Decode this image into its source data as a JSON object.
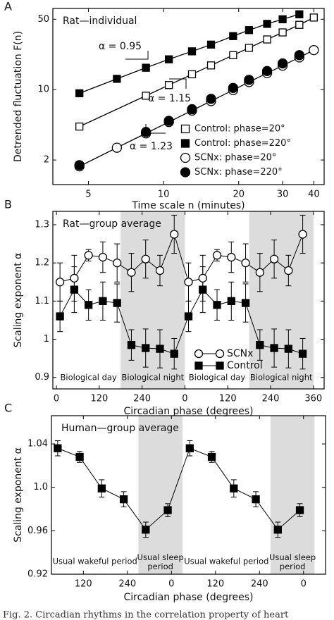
{
  "chart_data": [
    {
      "type": "scatter",
      "panel": "A",
      "annotation": "Rat—individual",
      "xlabel": "Time scale n (minutes)",
      "ylabel": "Detrended fluctuation F(n)",
      "xscale": "log",
      "yscale": "log",
      "xlim": [
        3.6,
        44
      ],
      "ylim": [
        1.14,
        64
      ],
      "xticks": [
        5,
        10,
        20,
        30,
        40
      ],
      "yticks": [
        2,
        10,
        50
      ],
      "alpha_labels": [
        "α = 0.95",
        "α = 1.15",
        "α = 1.23"
      ],
      "legend": "lower right",
      "series": [
        {
          "name": "Control: phase=20°",
          "marker": "square",
          "filled": false,
          "fit": true,
          "color": "#000000",
          "x": [
            4.6,
            8.5,
            10.5,
            13,
            15.5,
            19,
            22,
            26,
            30,
            35,
            40
          ],
          "values": [
            4.3,
            8.7,
            11.1,
            14.2,
            17.4,
            22,
            26,
            31.5,
            37,
            44,
            52
          ]
        },
        {
          "name": "Control: phase=220°",
          "marker": "square",
          "filled": true,
          "fit": true,
          "color": "#000000",
          "x": [
            4.6,
            6.5,
            8.5,
            10.5,
            13,
            15.5,
            19,
            22,
            26,
            30,
            35
          ],
          "values": [
            9.2,
            12.8,
            16.5,
            20,
            24,
            28,
            34,
            39,
            45,
            50,
            56
          ]
        },
        {
          "name": "SCNx:   phase=20°",
          "marker": "circle",
          "filled": false,
          "fit": true,
          "color": "#000000",
          "x": [
            4.6,
            6.5,
            8.5,
            10.5,
            13,
            15.5,
            19,
            22,
            26,
            30,
            35,
            40
          ],
          "values": [
            1.73,
            2.65,
            3.68,
            4.77,
            6.2,
            7.7,
            9.9,
            11.9,
            14.6,
            17.3,
            20.9,
            24.7
          ]
        },
        {
          "name": "SCNx:   phase=220°",
          "marker": "circle",
          "filled": true,
          "fit": false,
          "color": "#000000",
          "x": [
            4.6,
            8.5,
            10.5,
            13,
            15.5,
            19,
            22,
            26,
            30,
            35
          ],
          "values": [
            1.78,
            3.8,
            4.9,
            6.4,
            8.1,
            10.4,
            12.5,
            15.3,
            18.2,
            22
          ]
        }
      ]
    },
    {
      "type": "line",
      "panel": "B",
      "annotation": "Rat—group average",
      "xlabel": "Circadian phase (degrees)",
      "ylabel": "Scaling exponent α",
      "xlim": [
        -10,
        750
      ],
      "ylim": [
        0.87,
        1.335
      ],
      "xticks": [
        0,
        120,
        240,
        {
          "value": 360,
          "label": "0"
        },
        {
          "value": 480,
          "label": "120"
        },
        {
          "value": 600,
          "label": "240"
        },
        {
          "value": 720,
          "label": "360"
        }
      ],
      "yticks": [
        0.9,
        1,
        1.1,
        1.2,
        1.3
      ],
      "regions": [
        {
          "start": 0,
          "end": 180,
          "label": "Biological day",
          "shaded": false
        },
        {
          "start": 180,
          "end": 360,
          "label": "Biological night",
          "shaded": true
        },
        {
          "start": 360,
          "end": 540,
          "label": "Biological day",
          "shaded": false
        },
        {
          "start": 540,
          "end": 720,
          "label": "Biological night",
          "shaded": true
        }
      ],
      "shade_color": "#dcdcdc",
      "legend": "lower right",
      "x": [
        10,
        50,
        90,
        130,
        170,
        210,
        250,
        290,
        330,
        370,
        410,
        450,
        490,
        530,
        570,
        610,
        650,
        690
      ],
      "series": [
        {
          "name": "SCNx",
          "marker": "circle",
          "filled": false,
          "color": "#000000",
          "values": [
            1.15,
            1.16,
            1.22,
            1.215,
            1.2,
            1.175,
            1.21,
            1.18,
            1.275,
            1.15,
            1.16,
            1.22,
            1.215,
            1.2,
            1.175,
            1.21,
            1.18,
            1.275
          ],
          "errors": [
            0.05,
            0.06,
            0.015,
            0.04,
            0.05,
            0.05,
            0.05,
            0.04,
            0.05,
            0.05,
            0.06,
            0.015,
            0.04,
            0.05,
            0.05,
            0.05,
            0.04,
            0.05
          ]
        },
        {
          "name": "Control",
          "marker": "square",
          "filled": true,
          "color": "#000000",
          "values": [
            1.06,
            1.13,
            1.09,
            1.1,
            1.095,
            0.985,
            0.977,
            0.975,
            0.962,
            1.06,
            1.13,
            1.09,
            1.1,
            1.095,
            0.985,
            0.977,
            0.975,
            0.962
          ],
          "errors": [
            0.04,
            0.06,
            0.04,
            0.05,
            0.05,
            0.04,
            0.05,
            0.05,
            0.04,
            0.04,
            0.06,
            0.04,
            0.05,
            0.05,
            0.04,
            0.05,
            0.05,
            0.04
          ]
        }
      ]
    },
    {
      "type": "line",
      "panel": "C",
      "annotation": "Human—group average",
      "xlabel": "Circadian phase (degrees)",
      "ylabel": "Scaling exponent α",
      "xlim": [
        33,
        780
      ],
      "ylim": [
        0.92,
        1.066
      ],
      "xticks": [
        120,
        240,
        {
          "value": 360,
          "label": "0"
        },
        {
          "value": 480,
          "label": "120"
        },
        {
          "value": 600,
          "label": "240"
        },
        {
          "value": 720,
          "label": "0"
        }
      ],
      "yticks": [
        0.92,
        0.96,
        {
          "value": 1,
          "label": "1.0"
        },
        1.04
      ],
      "regions": [
        {
          "start": 33,
          "end": 270,
          "label": "Usual wakeful period",
          "shaded": false
        },
        {
          "start": 270,
          "end": 390,
          "label": "Usual sleep period",
          "shaded": true
        },
        {
          "start": 390,
          "end": 630,
          "label": "Usual wakeful period",
          "shaded": false
        },
        {
          "start": 630,
          "end": 750,
          "label": "Usual sleep period",
          "shaded": true
        }
      ],
      "shade_color": "#dcdcdc",
      "x": [
        50,
        110,
        170,
        230,
        290,
        350,
        410,
        470,
        530,
        590,
        650,
        710
      ],
      "series": [
        {
          "name": "Human",
          "marker": "square",
          "filled": true,
          "color": "#000000",
          "values": [
            1.036,
            1.028,
            0.999,
            0.989,
            0.961,
            0.979,
            1.036,
            1.028,
            0.999,
            0.989,
            0.961,
            0.979
          ],
          "errors": [
            0.007,
            0.005,
            0.008,
            0.007,
            0.007,
            0.006,
            0.007,
            0.005,
            0.008,
            0.007,
            0.007,
            0.006
          ]
        }
      ]
    }
  ],
  "caption": "Fig. 2. Circadian rhythms in the correlation property of heart"
}
